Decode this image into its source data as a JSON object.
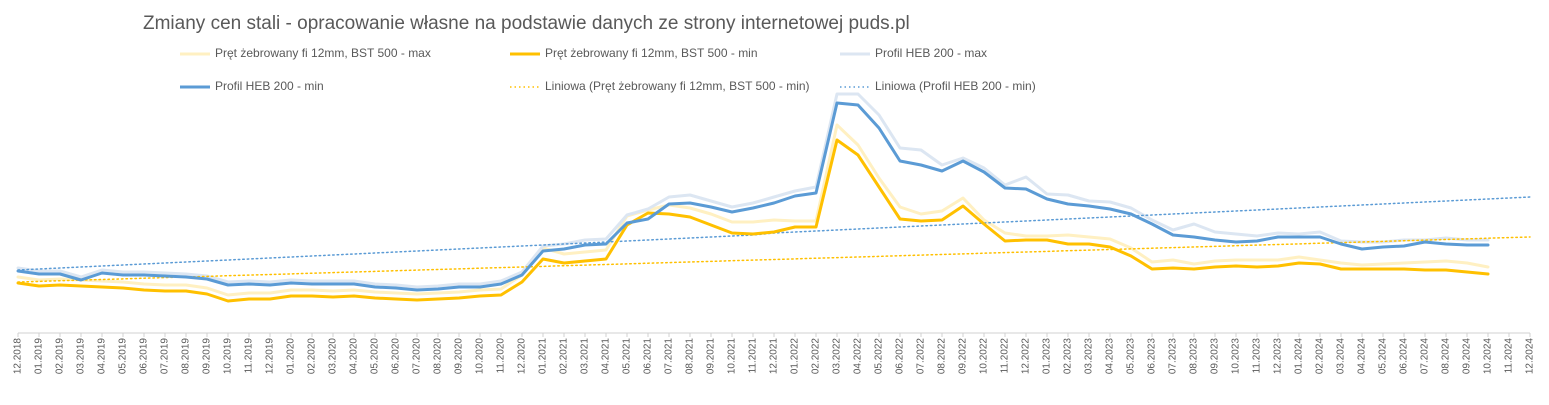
{
  "chart_data": {
    "type": "line",
    "title": "Zmiany cen stali - opracowanie własne na podstawie danych ze strony internetowej puds.pl",
    "categories": [
      "12.2018",
      "01.2019",
      "02.2019",
      "03.2019",
      "04.2019",
      "05.2019",
      "06.2019",
      "07.2019",
      "08.2019",
      "09.2019",
      "10.2019",
      "11.2019",
      "12.2019",
      "01.2020",
      "02.2020",
      "03.2020",
      "04.2020",
      "05.2020",
      "06.2020",
      "07.2020",
      "08.2020",
      "09.2020",
      "10.2020",
      "11.2020",
      "12.2020",
      "01.2021",
      "02.2021",
      "03.2021",
      "04.2021",
      "05.2021",
      "06.2021",
      "07.2021",
      "08.2021",
      "09.2021",
      "10.2021",
      "11.2021",
      "12.2021",
      "01.2022",
      "02.2022",
      "03.2022",
      "04.2022",
      "05.2022",
      "06.2022",
      "07.2022",
      "08.2022",
      "09.2022",
      "10.2022",
      "11.2022",
      "12.2022",
      "01.2023",
      "02.2023",
      "03.2023",
      "04.2023",
      "05.2023",
      "06.2023",
      "07.2023",
      "08.2023",
      "09.2023",
      "10.2023",
      "11.2023",
      "12.2023",
      "01.2024",
      "02.2024",
      "03.2024",
      "04.2024",
      "05.2024",
      "06.2024",
      "07.2024",
      "08.2024",
      "09.2024",
      "10.2024",
      "11.2024",
      "12.2024"
    ],
    "ylim": [
      0,
      260
    ],
    "series": [
      {
        "name": "Pręt żebrowany fi 12mm, BST 500 - max",
        "color": "#fff0c2",
        "style": "solid",
        "values": [
          56,
          53,
          54,
          53,
          52,
          51,
          49,
          48,
          48,
          45,
          38,
          40,
          40,
          43,
          43,
          42,
          43,
          41,
          40,
          39,
          40,
          41,
          43,
          44,
          58,
          85,
          79,
          81,
          83,
          117,
          123,
          128,
          125,
          119,
          111,
          111,
          113,
          112,
          112,
          208,
          188,
          155,
          126,
          119,
          122,
          135,
          113,
          100,
          97,
          97,
          98,
          96,
          94,
          85,
          71,
          73,
          69,
          72,
          73,
          73,
          73,
          76,
          73,
          70,
          68,
          69,
          70,
          71,
          72,
          70,
          66,
          null,
          null
        ]
      },
      {
        "name": "Pręt żebrowany fi 12mm, BST 500 - min",
        "color": "#ffc000",
        "style": "solid",
        "values": [
          50,
          47,
          48,
          47,
          46,
          45,
          43,
          42,
          42,
          39,
          32,
          34,
          34,
          37,
          37,
          36,
          37,
          35,
          34,
          33,
          34,
          35,
          37,
          38,
          51,
          74,
          70,
          72,
          74,
          108,
          120,
          119,
          116,
          108,
          100,
          99,
          101,
          106,
          106,
          193,
          178,
          146,
          114,
          112,
          113,
          127,
          109,
          92,
          93,
          93,
          89,
          89,
          86,
          77,
          64,
          65,
          64,
          66,
          67,
          66,
          67,
          70,
          69,
          64,
          64,
          64,
          64,
          63,
          63,
          61,
          59,
          null,
          null
        ]
      },
      {
        "name": "Profil HEB 200 - max",
        "color": "#dce6f2",
        "style": "solid",
        "values": [
          65,
          62,
          62,
          56,
          63,
          61,
          61,
          60,
          59,
          57,
          51,
          52,
          51,
          53,
          52,
          52,
          52,
          49,
          48,
          46,
          47,
          49,
          49,
          52,
          61,
          87,
          89,
          93,
          94,
          118,
          124,
          136,
          138,
          132,
          126,
          130,
          136,
          142,
          146,
          239,
          239,
          218,
          185,
          183,
          168,
          175,
          165,
          148,
          156,
          139,
          138,
          132,
          131,
          125,
          113,
          103,
          109,
          101,
          99,
          97,
          100,
          99,
          101,
          92,
          91,
          91,
          93,
          93,
          95,
          93,
          93,
          null,
          null
        ]
      },
      {
        "name": "Profil HEB 200 - min",
        "color": "#5b9bd5",
        "style": "solid",
        "values": [
          62,
          59,
          59,
          53,
          60,
          58,
          58,
          57,
          56,
          54,
          48,
          49,
          48,
          50,
          49,
          49,
          49,
          46,
          45,
          43,
          44,
          46,
          46,
          49,
          58,
          82,
          84,
          88,
          89,
          110,
          114,
          129,
          130,
          126,
          121,
          125,
          130,
          137,
          140,
          230,
          228,
          205,
          172,
          168,
          162,
          172,
          161,
          145,
          144,
          134,
          129,
          127,
          124,
          119,
          109,
          98,
          96,
          93,
          91,
          92,
          96,
          96,
          96,
          89,
          84,
          86,
          87,
          91,
          89,
          88,
          88,
          null,
          null
        ]
      },
      {
        "name": "Liniowa (Pręt żebrowany fi 12mm, BST 500 - min)",
        "color": "#ffc000",
        "style": "dotted",
        "values": [
          51,
          51.6,
          52.3,
          52.9,
          53.5,
          54.1,
          54.8,
          55.4,
          56,
          56.6,
          57.3,
          57.9,
          58.5,
          59.1,
          59.8,
          60.4,
          61,
          61.6,
          62.3,
          62.9,
          63.5,
          64.1,
          64.8,
          65.4,
          66,
          66.6,
          67.3,
          67.9,
          68.5,
          69.1,
          69.8,
          70.4,
          71,
          71.6,
          72.3,
          72.9,
          73.5,
          74.1,
          74.8,
          75.4,
          76,
          76.6,
          77.3,
          77.9,
          78.5,
          79.1,
          79.8,
          80.4,
          81,
          81.6,
          82.3,
          82.9,
          83.5,
          84.1,
          84.8,
          85.4,
          86,
          86.6,
          87.3,
          87.9,
          88.5,
          89.1,
          89.8,
          90.4,
          91,
          91.6,
          92.3,
          92.9,
          93.5,
          94.1,
          94.8,
          95.4,
          96
        ]
      },
      {
        "name": "Liniowa (Profil HEB 200 - min)",
        "color": "#5b9bd5",
        "style": "dotted",
        "values": [
          63,
          64,
          65,
          66,
          67,
          68,
          69,
          70,
          71,
          72,
          73,
          74,
          75,
          76,
          77,
          78,
          79,
          80,
          81,
          82,
          83,
          84,
          85,
          86,
          87,
          88,
          89,
          90,
          91,
          92,
          93,
          94,
          95,
          96,
          97,
          98,
          100,
          101,
          102,
          103,
          104,
          105,
          106,
          107,
          108,
          109,
          110,
          111,
          112,
          113,
          114,
          115,
          116,
          117,
          118,
          119,
          120,
          121,
          122,
          123,
          124,
          125,
          126,
          127,
          128,
          129,
          130,
          131,
          132,
          133,
          134,
          135,
          136
        ]
      }
    ]
  }
}
